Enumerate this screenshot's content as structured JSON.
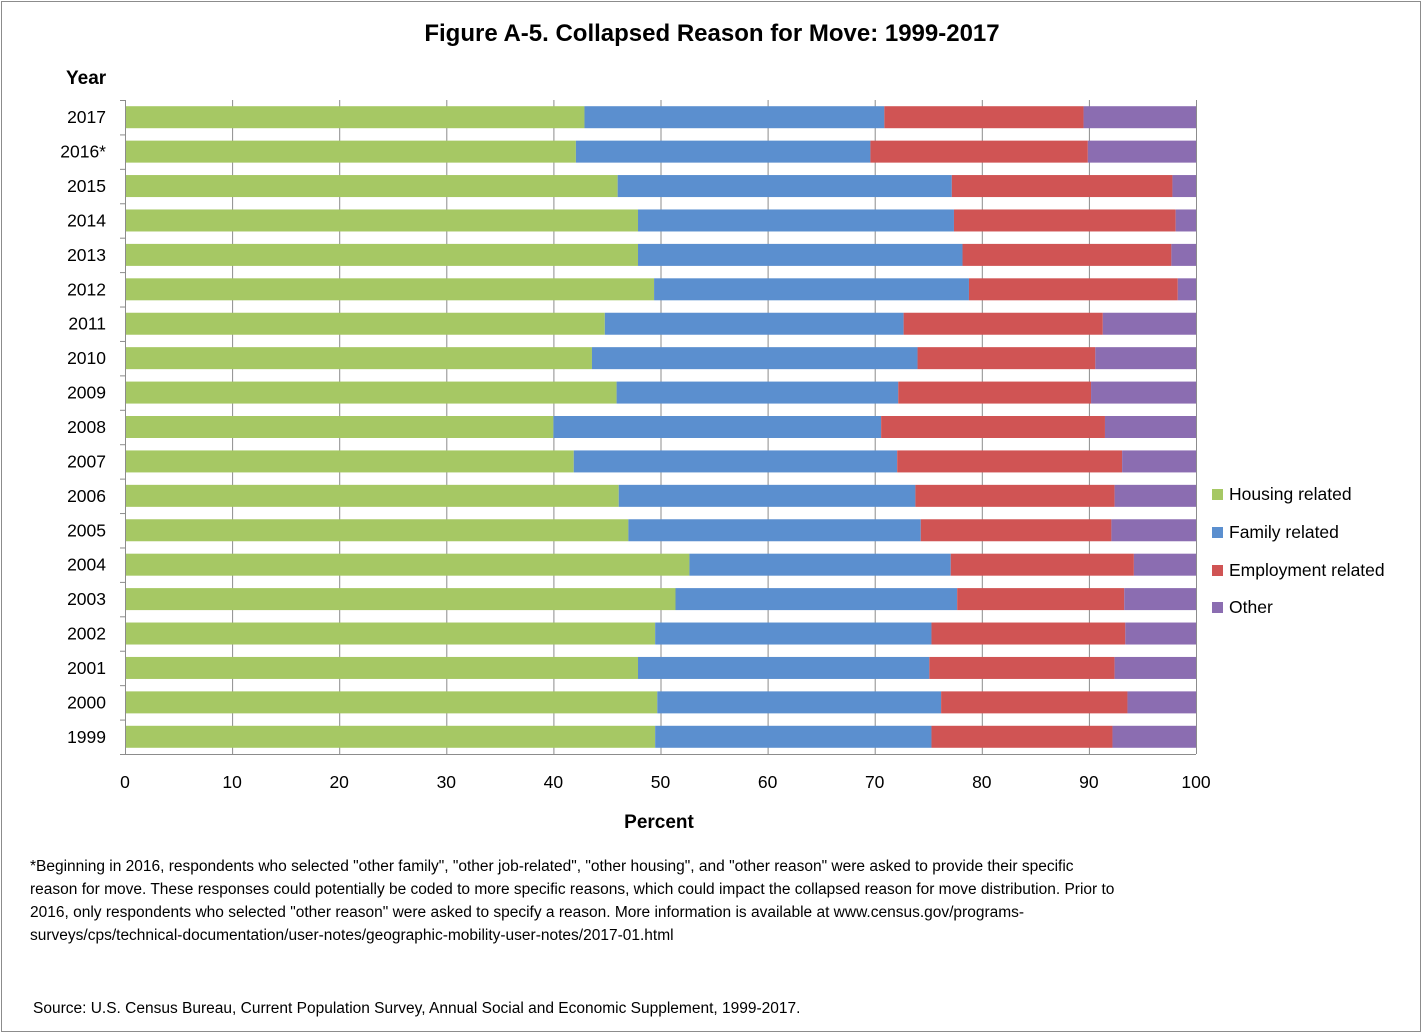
{
  "title": "Figure A-5. Collapsed Reason for Move: 1999-2017",
  "year_axis_label": "Year",
  "footnote_lines": [
    "*Beginning in 2016, respondents who selected \"other family\", \"other job-related\", \"other housing\", and \"other reason\" were asked to provide their specific",
    "reason for move. These responses could potentially be coded to more specific reasons, which could impact the collapsed reason for move distribution. Prior to",
    "2016, only respondents who selected \"other reason\" were asked to specify a reason. More information is available at www.census.gov/programs-",
    "surveys/cps/technical-documentation/user-notes/geographic-mobility-user-notes/2017-01.html"
  ],
  "source": "Source: U.S. Census Bureau, Current Population Survey,  Annual Social and Economic Supplement, 1999-2017.",
  "chart_data": {
    "type": "bar",
    "orientation": "horizontal",
    "stacked": true,
    "title": "Figure A-5. Collapsed Reason for Move: 1999-2017",
    "xlabel": "Percent",
    "ylabel": "Year",
    "xlim": [
      0,
      100
    ],
    "xticks": [
      0,
      10,
      20,
      30,
      40,
      50,
      60,
      70,
      80,
      90,
      100
    ],
    "grid": true,
    "legend_position": "right",
    "categories": [
      "2017",
      "2016*",
      "2015",
      "2014",
      "2013",
      "2012",
      "2011",
      "2010",
      "2009",
      "2008",
      "2007",
      "2006",
      "2005",
      "2004",
      "2003",
      "2002",
      "2001",
      "2000",
      "1999"
    ],
    "series": [
      {
        "name": "Housing related",
        "color": "#a6c864",
        "values": [
          42.9,
          42.1,
          46.0,
          47.9,
          47.9,
          49.4,
          44.8,
          43.6,
          45.9,
          40.0,
          41.9,
          46.1,
          47.0,
          52.7,
          51.4,
          49.5,
          47.9,
          49.7,
          49.5
        ]
      },
      {
        "name": "Family related",
        "color": "#5b8fcf",
        "values": [
          28.0,
          27.5,
          31.2,
          29.5,
          30.3,
          29.4,
          27.9,
          30.4,
          26.3,
          30.6,
          30.2,
          27.7,
          27.3,
          24.4,
          26.3,
          25.8,
          27.2,
          26.5,
          25.8
        ]
      },
      {
        "name": "Employment related",
        "color": "#d05454",
        "values": [
          18.6,
          20.3,
          20.6,
          20.7,
          19.5,
          19.5,
          18.6,
          16.6,
          18.0,
          20.9,
          21.0,
          18.6,
          17.8,
          17.1,
          15.6,
          18.1,
          17.3,
          17.4,
          16.9
        ]
      },
      {
        "name": "Other",
        "color": "#8b6db1",
        "values": [
          10.5,
          10.1,
          2.2,
          1.9,
          2.3,
          1.7,
          8.7,
          9.4,
          9.8,
          8.5,
          6.9,
          7.6,
          7.9,
          5.8,
          6.7,
          6.6,
          7.6,
          6.4,
          7.8
        ]
      }
    ]
  }
}
